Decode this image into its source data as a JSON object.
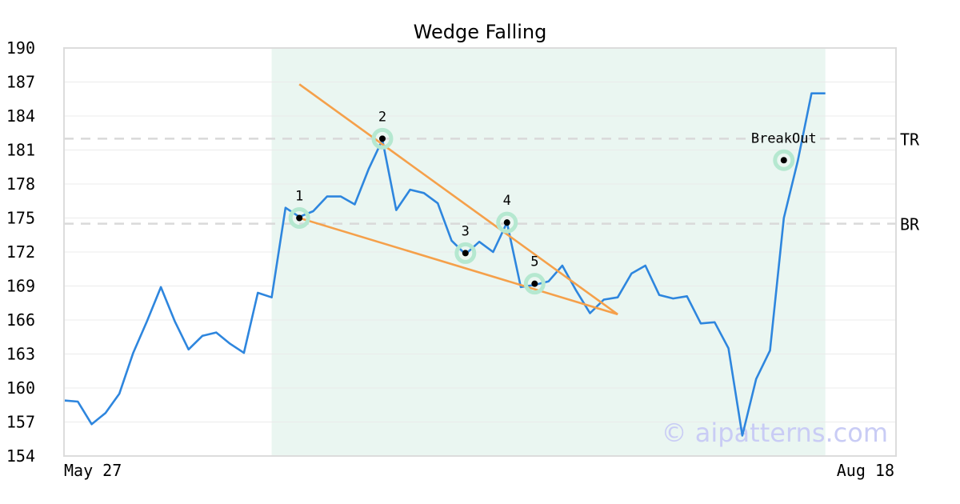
{
  "chart_data": {
    "type": "line",
    "title": "Wedge Falling",
    "xlabel": "",
    "ylabel": "",
    "ylim": [
      154,
      190
    ],
    "yticks": [
      154,
      157,
      160,
      163,
      166,
      169,
      172,
      175,
      178,
      181,
      184,
      187,
      190
    ],
    "x_labels": [
      "May 27",
      "Aug 18"
    ],
    "x_count": 58,
    "grid": true,
    "colors": {
      "price": "#2e86de",
      "wedge": "#f5a04a",
      "highlight": "#eaf6f1",
      "marker_ring": "#b5e8d0",
      "ref_line": "#d9d9d9"
    },
    "price": [
      158.9,
      158.8,
      156.8,
      157.8,
      159.5,
      163.1,
      165.9,
      168.9,
      165.9,
      163.4,
      164.6,
      164.9,
      163.9,
      163.1,
      168.4,
      168.0,
      175.9,
      175.1,
      175.6,
      176.9,
      176.9,
      176.2,
      179.3,
      181.9,
      175.7,
      177.5,
      177.2,
      176.3,
      173.0,
      171.8,
      172.9,
      172.0,
      174.6,
      168.9,
      169.1,
      169.4,
      170.8,
      168.6,
      166.6,
      167.8,
      168.0,
      170.1,
      170.8,
      168.2,
      167.9,
      168.1,
      165.7,
      165.8,
      163.5,
      155.8,
      160.8,
      163.3,
      175.0,
      180.0,
      186.0,
      186.0
    ],
    "highlight_range": [
      15,
      55
    ],
    "wedge_lines": [
      {
        "x": [
          17,
          40
        ],
        "y": [
          186.8,
          166.5
        ]
      },
      {
        "x": [
          17,
          40
        ],
        "y": [
          175.0,
          166.5
        ]
      }
    ],
    "points": [
      {
        "label": "1",
        "x": 17,
        "y": 175.0
      },
      {
        "label": "2",
        "x": 23,
        "y": 182.0
      },
      {
        "label": "3",
        "x": 29,
        "y": 171.9
      },
      {
        "label": "4",
        "x": 32,
        "y": 174.6
      },
      {
        "label": "5",
        "x": 34,
        "y": 169.2
      },
      {
        "label": "BreakOut",
        "x": 52,
        "y": 180.1
      }
    ],
    "ref_lines": [
      {
        "label": "TR",
        "y": 182.0
      },
      {
        "label": "BR",
        "y": 174.5
      }
    ],
    "watermark": "© aipatterns.com"
  }
}
